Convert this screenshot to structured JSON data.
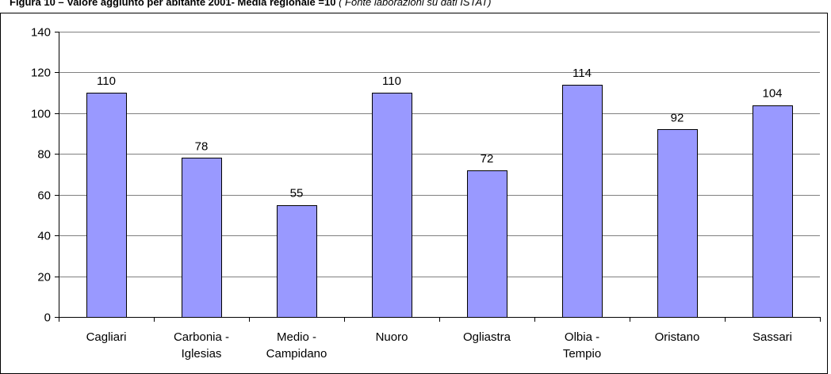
{
  "title": "Figura 10 – Valore aggiunto per abitante 2001- Media regionale =10",
  "title_note": "( Fonte laborazioni su dati ISTAT)",
  "chart_data": {
    "type": "bar",
    "title": "Figura 10 – Valore aggiunto per abitante 2001- Media regionale =10",
    "xlabel": "",
    "ylabel": "",
    "ylim": [
      0,
      140
    ],
    "yticks": [
      0,
      20,
      40,
      60,
      80,
      100,
      120,
      140
    ],
    "grid": true,
    "categories": [
      [
        "Cagliari"
      ],
      [
        "Carbonia -",
        "Iglesias"
      ],
      [
        "Medio -",
        "Campidano"
      ],
      [
        "Nuoro"
      ],
      [
        "Ogliastra"
      ],
      [
        "Olbia -",
        "Tempio"
      ],
      [
        "Oristano"
      ],
      [
        "Sassari"
      ]
    ],
    "values": [
      110,
      78,
      55,
      110,
      72,
      114,
      92,
      104
    ],
    "data_labels": [
      "110",
      "78",
      "55",
      "110",
      "72",
      "114",
      "92",
      "104"
    ],
    "colors": {
      "bar_fill": "#9999ff",
      "bar_stroke": "#000000",
      "grid": "#808080",
      "axis": "#000000",
      "frame": "#000000"
    }
  }
}
